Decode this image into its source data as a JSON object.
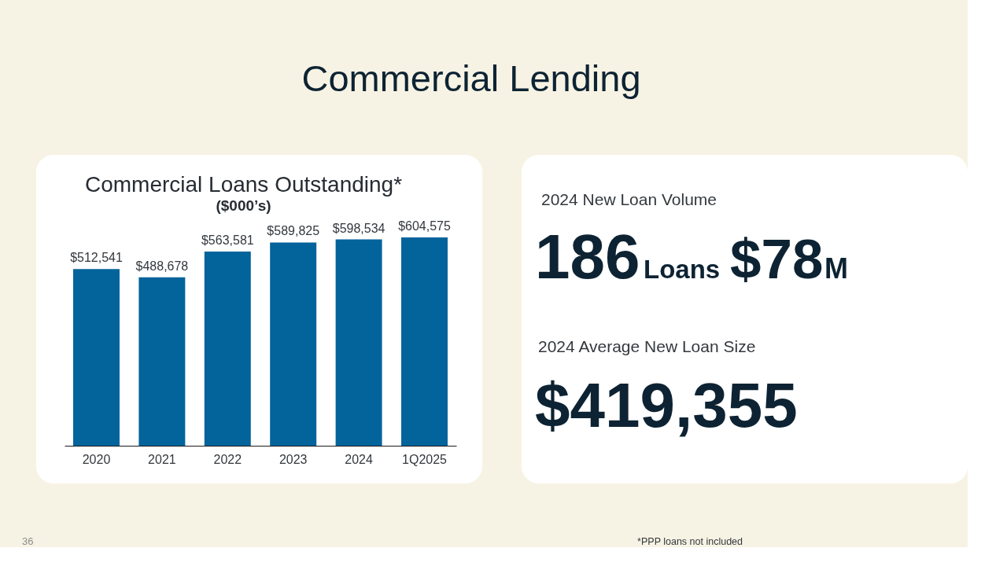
{
  "chart_data": [
    {
      "type": "other",
      "title": "Commercial Lending",
      "annotations": [
        "36",
        "*PPP loans not included"
      ]
    },
    {
      "type": "bar",
      "title": "Commercial Loans Outstanding*",
      "subtitle": "($000’s)",
      "categories": [
        "2020",
        "2021",
        "2022",
        "2023",
        "2024",
        "1Q2025"
      ],
      "values": [
        512541,
        488678,
        563581,
        589825,
        598534,
        604575
      ],
      "value_labels": [
        "$512,541",
        "$488,678",
        "$563,581",
        "$589,825",
        "$598,534",
        "$604,575"
      ],
      "color": "#03639b",
      "tick_labels": "x"
    },
    {
      "type": "other",
      "annotations": [
        "2024 New Loan Volume",
        "186",
        "Loans",
        "$78",
        "M",
        "2024 Average New Loan Size",
        "$419,355"
      ]
    }
  ]
}
